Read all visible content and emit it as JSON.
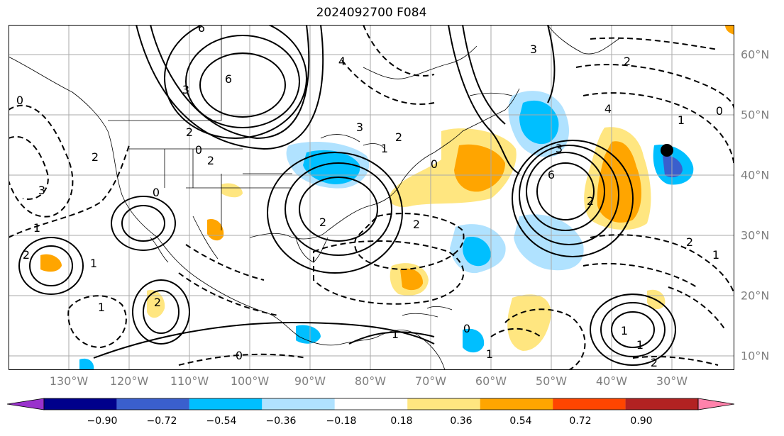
{
  "title": "2024092700 F084",
  "lon_labels": [
    "130°W",
    "120°W",
    "110°W",
    "100°W",
    "90°W",
    "80°W",
    "70°W",
    "60°W",
    "50°W",
    "40°W",
    "30°W"
  ],
  "lat_labels": [
    "60°N",
    "50°N",
    "40°N",
    "30°N",
    "20°N",
    "10°N"
  ],
  "colorbar": {
    "ticks": [
      "−0.90",
      "−0.72",
      "−0.54",
      "−0.36",
      "−0.18",
      "0.18",
      "0.36",
      "0.54",
      "0.72",
      "0.90"
    ],
    "colors": [
      "#9932CC",
      "#00008B",
      "#3A5FCD",
      "#00BFFF",
      "#B0E2FF",
      "#FFFFFF",
      "#FFE680",
      "#FFA500",
      "#FF4500",
      "#B22222",
      "#FF82AB"
    ]
  },
  "contour_labels": [
    {
      "text": "6"
    },
    {
      "text": "6"
    },
    {
      "text": "3"
    },
    {
      "text": "2"
    },
    {
      "text": "0"
    },
    {
      "text": "2"
    },
    {
      "text": "4"
    },
    {
      "text": "3"
    },
    {
      "text": "2"
    },
    {
      "text": "1"
    },
    {
      "text": "0"
    },
    {
      "text": "0"
    },
    {
      "text": "1"
    },
    {
      "text": "2"
    },
    {
      "text": "3"
    },
    {
      "text": "2"
    },
    {
      "text": "1"
    },
    {
      "text": "0"
    },
    {
      "text": "1"
    },
    {
      "text": "2"
    },
    {
      "text": "3"
    },
    {
      "text": "6"
    },
    {
      "text": "3"
    },
    {
      "text": "2"
    },
    {
      "text": "4"
    },
    {
      "text": "2"
    },
    {
      "text": "0"
    },
    {
      "text": "1"
    },
    {
      "text": "2"
    },
    {
      "text": "1"
    },
    {
      "text": "2"
    },
    {
      "text": "1"
    },
    {
      "text": "0"
    },
    {
      "text": "2"
    },
    {
      "text": "1"
    },
    {
      "text": "1"
    },
    {
      "text": "0"
    },
    {
      "text": "1"
    },
    {
      "text": "2"
    }
  ]
}
